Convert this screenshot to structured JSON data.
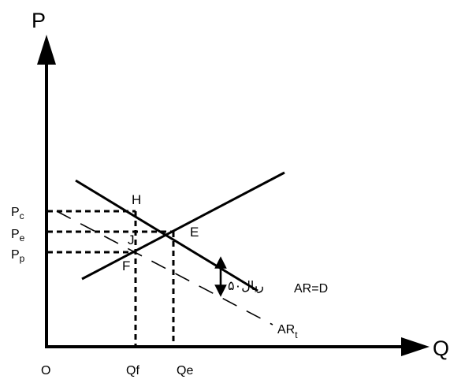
{
  "axes": {
    "y_label": "P",
    "x_label": "Q",
    "origin_label": "O"
  },
  "price_labels": [
    {
      "main": "P",
      "sub": "c"
    },
    {
      "main": "P",
      "sub": "e"
    },
    {
      "main": "P",
      "sub": "p"
    }
  ],
  "quantity_labels": [
    "Qf",
    "Qe"
  ],
  "points": [
    "H",
    "E",
    "J",
    "F"
  ],
  "curves": {
    "demand": "AR=D",
    "taxed_main": "AR",
    "taxed_sub": "t"
  },
  "tax_amount": "۵۰ریال",
  "colors": {
    "ink": "#000000",
    "background": "#ffffff"
  }
}
